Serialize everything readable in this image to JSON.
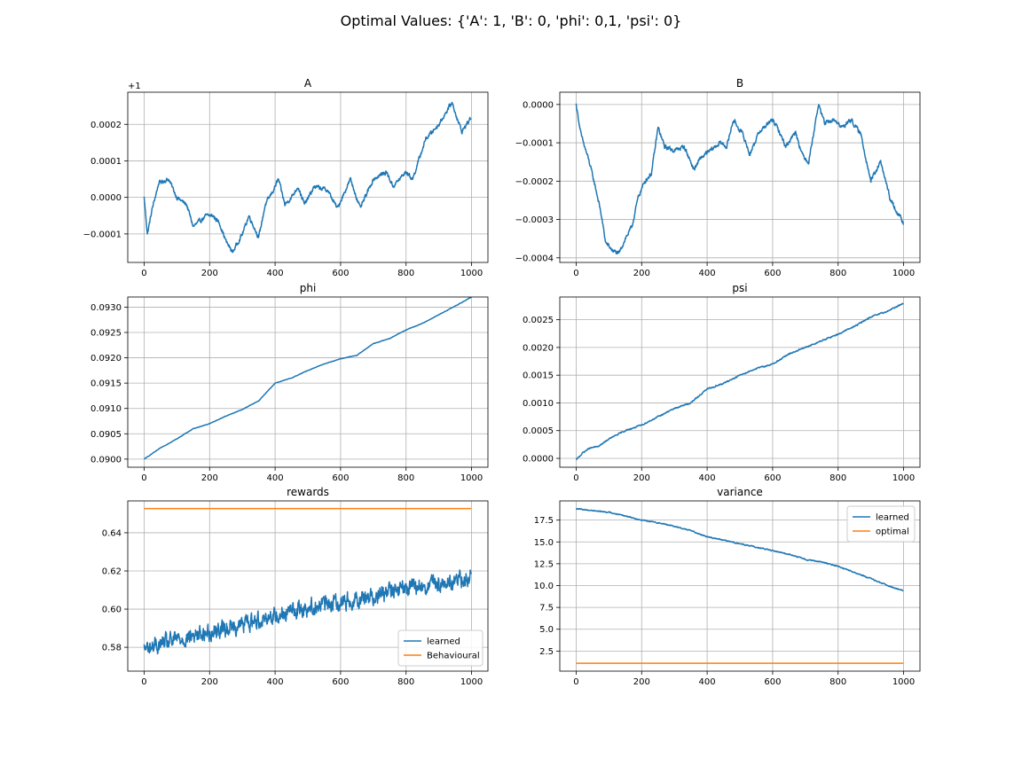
{
  "figure": {
    "suptitle": "Optimal Values: {'A': 1, 'B': 0, 'phi': 0,1, 'psi': 0}"
  },
  "chart_data": [
    {
      "id": "A",
      "type": "line",
      "title": "A",
      "offset_text": "+1",
      "xlim": [
        -50,
        1050
      ],
      "ylim": [
        -0.000178,
        0.000288
      ],
      "xticks": [
        0,
        200,
        400,
        600,
        800,
        1000
      ],
      "xtick_labels": [
        "0",
        "200",
        "400",
        "600",
        "800",
        "1000"
      ],
      "yticks": [
        -0.0001,
        0.0,
        0.0001,
        0.0002
      ],
      "ytick_labels": [
        "−0.0001",
        "0.0000",
        "0.0001",
        "0.0002"
      ],
      "grid": true,
      "n_points": 1000,
      "series": [
        {
          "color": "#1f77b4",
          "noise": 4.5e-06,
          "anchors": [
            [
              0,
              0.0
            ],
            [
              10,
              -0.0001
            ],
            [
              25,
              -3e-05
            ],
            [
              45,
              4e-05
            ],
            [
              75,
              5e-05
            ],
            [
              100,
              0.0
            ],
            [
              130,
              -2e-05
            ],
            [
              150,
              -8e-05
            ],
            [
              190,
              -5e-05
            ],
            [
              210,
              -5e-05
            ],
            [
              230,
              -7e-05
            ],
            [
              250,
              -0.00012
            ],
            [
              270,
              -0.00015
            ],
            [
              300,
              -0.0001
            ],
            [
              320,
              -5e-05
            ],
            [
              350,
              -0.00011
            ],
            [
              370,
              -2e-05
            ],
            [
              395,
              2e-05
            ],
            [
              410,
              5e-05
            ],
            [
              430,
              -2e-05
            ],
            [
              450,
              0.0
            ],
            [
              470,
              3e-05
            ],
            [
              490,
              -2e-05
            ],
            [
              520,
              3e-05
            ],
            [
              560,
              2e-05
            ],
            [
              590,
              -3e-05
            ],
            [
              630,
              5e-05
            ],
            [
              660,
              -3e-05
            ],
            [
              700,
              5e-05
            ],
            [
              740,
              7e-05
            ],
            [
              760,
              3e-05
            ],
            [
              800,
              7e-05
            ],
            [
              820,
              5e-05
            ],
            [
              860,
              0.00016
            ],
            [
              900,
              0.0002
            ],
            [
              940,
              0.00026
            ],
            [
              970,
              0.00018
            ],
            [
              1000,
              0.00022
            ]
          ]
        }
      ]
    },
    {
      "id": "B",
      "type": "line",
      "title": "B",
      "xlim": [
        -50,
        1050
      ],
      "ylim": [
        -0.000412,
        3.2e-05
      ],
      "xticks": [
        0,
        200,
        400,
        600,
        800,
        1000
      ],
      "xtick_labels": [
        "0",
        "200",
        "400",
        "600",
        "800",
        "1000"
      ],
      "yticks": [
        -0.0004,
        -0.0003,
        -0.0002,
        -0.0001,
        0.0
      ],
      "ytick_labels": [
        "−0.0004",
        "−0.0003",
        "−0.0002",
        "−0.0001",
        "0.0000"
      ],
      "grid": true,
      "n_points": 1000,
      "series": [
        {
          "color": "#1f77b4",
          "noise": 4.5e-06,
          "anchors": [
            [
              0,
              0.0
            ],
            [
              15,
              -8e-05
            ],
            [
              40,
              -0.00015
            ],
            [
              60,
              -0.00022
            ],
            [
              75,
              -0.00028
            ],
            [
              90,
              -0.00036
            ],
            [
              110,
              -0.00038
            ],
            [
              130,
              -0.00039
            ],
            [
              150,
              -0.00035
            ],
            [
              170,
              -0.00032
            ],
            [
              190,
              -0.00024
            ],
            [
              210,
              -0.0002
            ],
            [
              230,
              -0.00018
            ],
            [
              250,
              -6e-05
            ],
            [
              270,
              -0.00011
            ],
            [
              300,
              -0.00012
            ],
            [
              330,
              -0.00011
            ],
            [
              360,
              -0.00017
            ],
            [
              380,
              -0.00014
            ],
            [
              410,
              -0.00012
            ],
            [
              440,
              -0.0001
            ],
            [
              460,
              -0.00011
            ],
            [
              480,
              -4e-05
            ],
            [
              510,
              -8e-05
            ],
            [
              530,
              -0.00013
            ],
            [
              560,
              -7e-05
            ],
            [
              600,
              -4e-05
            ],
            [
              620,
              -7e-05
            ],
            [
              640,
              -0.00011
            ],
            [
              670,
              -7e-05
            ],
            [
              690,
              -0.00013
            ],
            [
              710,
              -0.00015
            ],
            [
              740,
              0.0
            ],
            [
              760,
              -5e-05
            ],
            [
              790,
              -4e-05
            ],
            [
              810,
              -6e-05
            ],
            [
              840,
              -4e-05
            ],
            [
              870,
              -8e-05
            ],
            [
              900,
              -0.0002
            ],
            [
              930,
              -0.00015
            ],
            [
              960,
              -0.00025
            ],
            [
              980,
              -0.00028
            ],
            [
              1000,
              -0.00031
            ]
          ]
        }
      ]
    },
    {
      "id": "phi",
      "type": "line",
      "title": "phi",
      "xlim": [
        -50,
        1050
      ],
      "ylim": [
        0.08984,
        0.0932
      ],
      "xticks": [
        0,
        200,
        400,
        600,
        800,
        1000
      ],
      "xtick_labels": [
        "0",
        "200",
        "400",
        "600",
        "800",
        "1000"
      ],
      "yticks": [
        0.09,
        0.0905,
        0.091,
        0.0915,
        0.092,
        0.0925,
        0.093
      ],
      "ytick_labels": [
        "0.0900",
        "0.0905",
        "0.0910",
        "0.0915",
        "0.0920",
        "0.0925",
        "0.0930"
      ],
      "grid": true,
      "n_points": 1000,
      "series": [
        {
          "color": "#1f77b4",
          "noise": 3.5e-06,
          "anchors": [
            [
              0,
              0.09
            ],
            [
              50,
              0.09022
            ],
            [
              100,
              0.0904
            ],
            [
              150,
              0.0906
            ],
            [
              200,
              0.0907
            ],
            [
              250,
              0.09085
            ],
            [
              300,
              0.09098
            ],
            [
              350,
              0.09115
            ],
            [
              400,
              0.0915
            ],
            [
              450,
              0.0916
            ],
            [
              500,
              0.09175
            ],
            [
              550,
              0.09188
            ],
            [
              600,
              0.09198
            ],
            [
              650,
              0.09205
            ],
            [
              700,
              0.09228
            ],
            [
              750,
              0.09238
            ],
            [
              800,
              0.09255
            ],
            [
              850,
              0.09268
            ],
            [
              900,
              0.09285
            ],
            [
              950,
              0.09302
            ],
            [
              1000,
              0.0932
            ]
          ]
        }
      ]
    },
    {
      "id": "psi",
      "type": "line",
      "title": "psi",
      "xlim": [
        -50,
        1050
      ],
      "ylim": [
        -0.00016,
        0.00291
      ],
      "xticks": [
        0,
        200,
        400,
        600,
        800,
        1000
      ],
      "xtick_labels": [
        "0",
        "200",
        "400",
        "600",
        "800",
        "1000"
      ],
      "yticks": [
        0.0,
        0.0005,
        0.001,
        0.0015,
        0.002,
        0.0025
      ],
      "ytick_labels": [
        "0.0000",
        "0.0005",
        "0.0010",
        "0.0015",
        "0.0020",
        "0.0025"
      ],
      "grid": true,
      "n_points": 1000,
      "series": [
        {
          "color": "#1f77b4",
          "noise": 9e-06,
          "anchors": [
            [
              0,
              -3e-05
            ],
            [
              20,
              0.0001
            ],
            [
              40,
              0.00018
            ],
            [
              70,
              0.00022
            ],
            [
              100,
              0.00035
            ],
            [
              150,
              0.0005
            ],
            [
              200,
              0.0006
            ],
            [
              250,
              0.00075
            ],
            [
              300,
              0.0009
            ],
            [
              350,
              0.001
            ],
            [
              400,
              0.00125
            ],
            [
              450,
              0.00135
            ],
            [
              500,
              0.0015
            ],
            [
              550,
              0.00162
            ],
            [
              600,
              0.0017
            ],
            [
              650,
              0.00188
            ],
            [
              700,
              0.002
            ],
            [
              750,
              0.00212
            ],
            [
              800,
              0.00224
            ],
            [
              850,
              0.00238
            ],
            [
              900,
              0.00255
            ],
            [
              950,
              0.00265
            ],
            [
              1000,
              0.0028
            ]
          ]
        }
      ]
    },
    {
      "id": "rewards",
      "type": "line",
      "title": "rewards",
      "xlim": [
        -50,
        1050
      ],
      "ylim": [
        0.5675,
        0.6567
      ],
      "xticks": [
        0,
        200,
        400,
        600,
        800,
        1000
      ],
      "xtick_labels": [
        "0",
        "200",
        "400",
        "600",
        "800",
        "1000"
      ],
      "yticks": [
        0.58,
        0.6,
        0.62,
        0.64
      ],
      "ytick_labels": [
        "0.58",
        "0.60",
        "0.62",
        "0.64"
      ],
      "grid": true,
      "legend": {
        "position": "lower-right",
        "entries": [
          "learned",
          "Behavioural"
        ]
      },
      "n_points": 1000,
      "series": [
        {
          "name": "learned",
          "color": "#1f77b4",
          "noise": 0.0035,
          "anchors": [
            [
              0,
              0.579
            ],
            [
              100,
              0.584
            ],
            [
              200,
              0.588
            ],
            [
              300,
              0.592
            ],
            [
              400,
              0.597
            ],
            [
              500,
              0.601
            ],
            [
              600,
              0.604
            ],
            [
              700,
              0.607
            ],
            [
              800,
              0.611
            ],
            [
              900,
              0.613
            ],
            [
              1000,
              0.617
            ]
          ]
        },
        {
          "name": "Behavioural",
          "color": "#ff7f0e",
          "noise": 0,
          "anchors": [
            [
              0,
              0.6527
            ],
            [
              1000,
              0.6527
            ]
          ]
        }
      ]
    },
    {
      "id": "variance",
      "type": "line",
      "title": "variance",
      "xlim": [
        -50,
        1050
      ],
      "ylim": [
        0.2,
        19.7
      ],
      "xticks": [
        0,
        200,
        400,
        600,
        800,
        1000
      ],
      "xtick_labels": [
        "0",
        "200",
        "400",
        "600",
        "800",
        "1000"
      ],
      "yticks": [
        2.5,
        5.0,
        7.5,
        10.0,
        12.5,
        15.0,
        17.5
      ],
      "ytick_labels": [
        "2.5",
        "5.0",
        "7.5",
        "10.0",
        "12.5",
        "15.0",
        "17.5"
      ],
      "grid": true,
      "legend": {
        "position": "upper-right",
        "entries": [
          "learned",
          "optimal"
        ]
      },
      "n_points": 1000,
      "series": [
        {
          "name": "learned",
          "color": "#1f77b4",
          "noise": 0.05,
          "anchors": [
            [
              0,
              18.8
            ],
            [
              50,
              18.6
            ],
            [
              100,
              18.4
            ],
            [
              150,
              18.0
            ],
            [
              200,
              17.5
            ],
            [
              250,
              17.2
            ],
            [
              300,
              16.8
            ],
            [
              350,
              16.3
            ],
            [
              400,
              15.6
            ],
            [
              450,
              15.2
            ],
            [
              500,
              14.8
            ],
            [
              550,
              14.4
            ],
            [
              600,
              14.0
            ],
            [
              650,
              13.6
            ],
            [
              700,
              13.0
            ],
            [
              750,
              12.7
            ],
            [
              800,
              12.2
            ],
            [
              850,
              11.5
            ],
            [
              900,
              10.8
            ],
            [
              950,
              10.0
            ],
            [
              1000,
              9.4
            ]
          ]
        },
        {
          "name": "optimal",
          "color": "#ff7f0e",
          "noise": 0,
          "anchors": [
            [
              0,
              1.1
            ],
            [
              1000,
              1.1
            ]
          ]
        }
      ]
    }
  ]
}
